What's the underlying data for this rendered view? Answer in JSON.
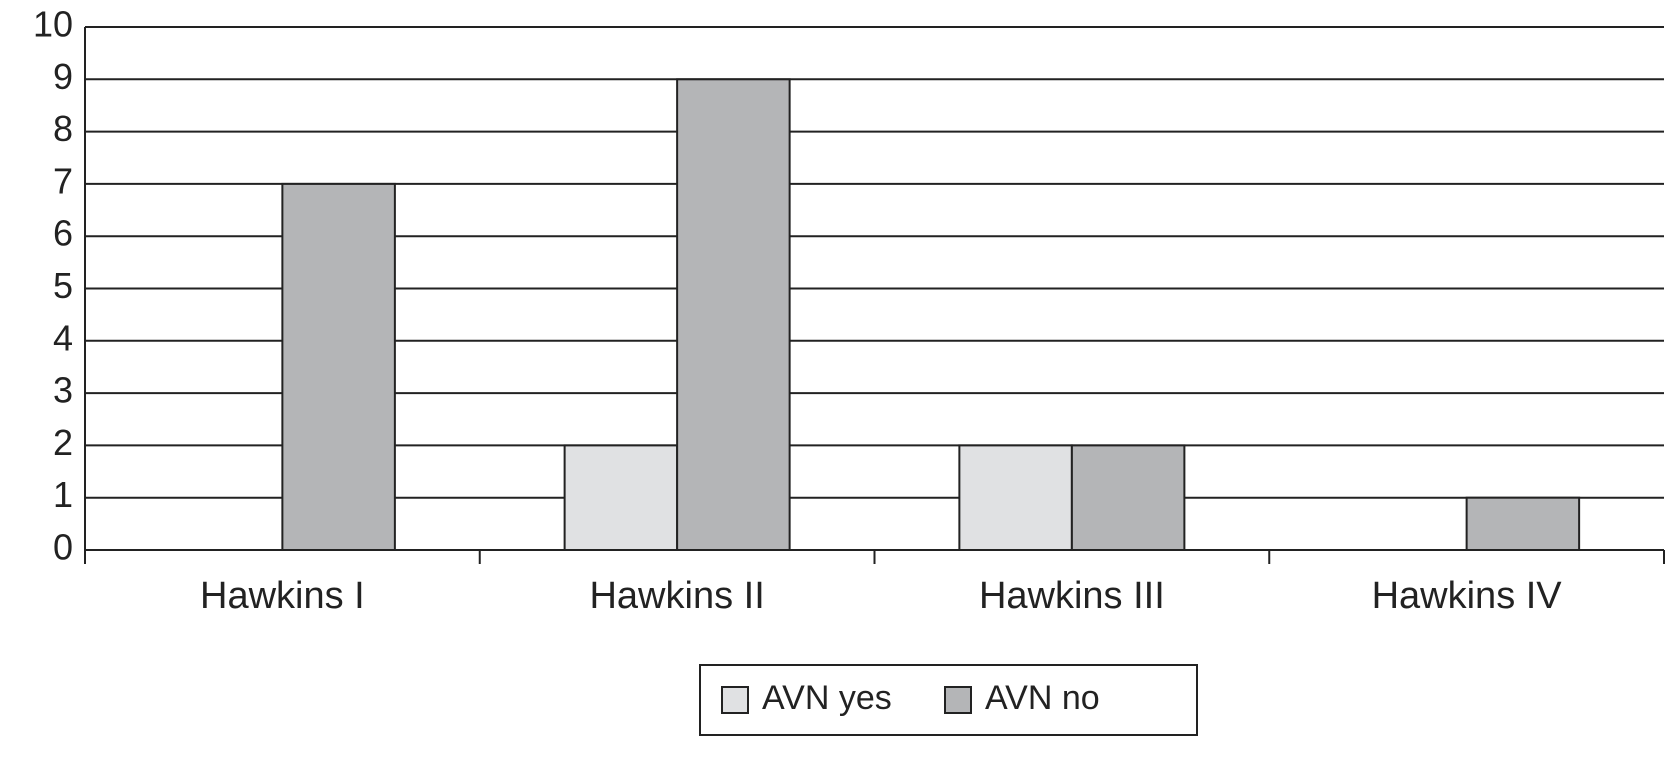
{
  "chart_data": {
    "type": "bar",
    "categories": [
      "Hawkins I",
      "Hawkins II",
      "Hawkins III",
      "Hawkins IV"
    ],
    "series": [
      {
        "name": "AVN yes",
        "color": "#e0e1e3",
        "values": [
          0,
          2,
          2,
          0
        ]
      },
      {
        "name": "AVN no",
        "color": "#b4b5b7",
        "values": [
          7,
          9,
          2,
          1
        ]
      }
    ],
    "ylim": [
      0,
      10
    ],
    "yticks": [
      0,
      1,
      2,
      3,
      4,
      5,
      6,
      7,
      8,
      9,
      10
    ],
    "grid": true,
    "legend": "bottom"
  }
}
